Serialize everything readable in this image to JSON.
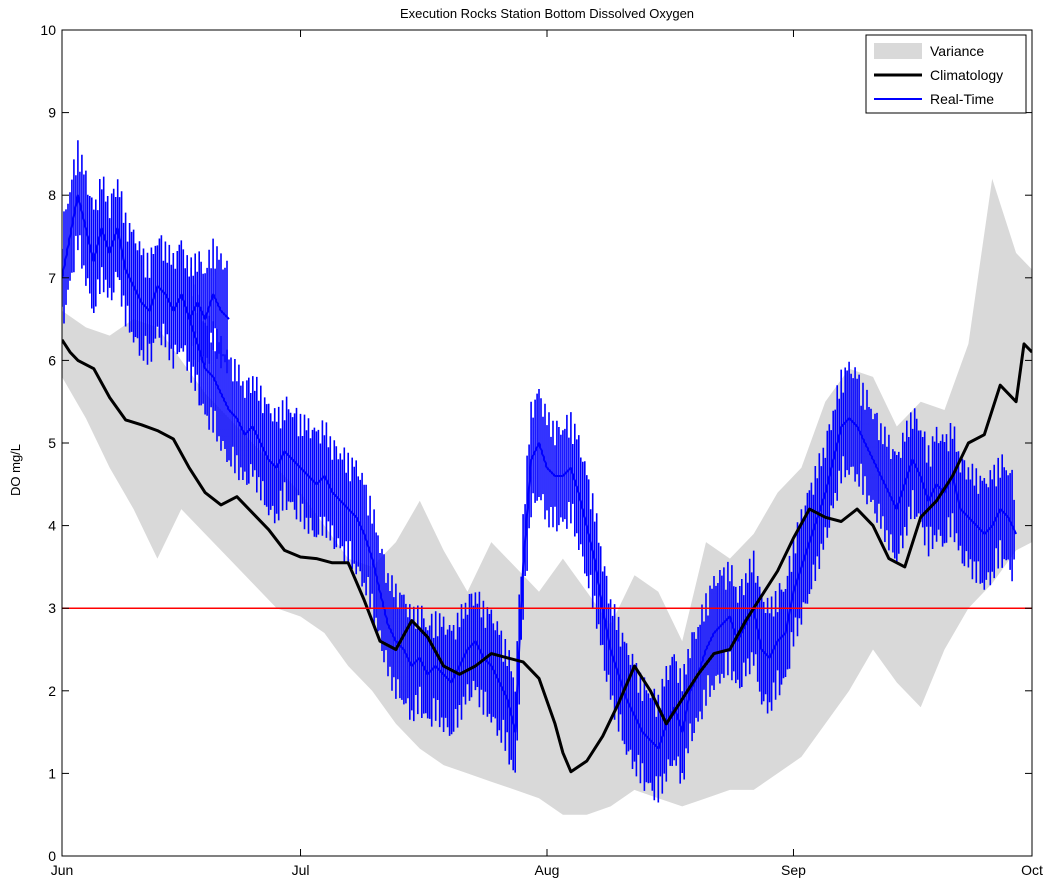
{
  "chart_data": {
    "type": "line",
    "title": "Execution Rocks Station Bottom Dissolved Oxygen",
    "xlabel": "",
    "ylabel": "DO mg/L",
    "xlim": [
      "Jun 1",
      "Oct 1"
    ],
    "ylim": [
      0,
      10
    ],
    "y_ticks": [
      0,
      1,
      2,
      3,
      4,
      5,
      6,
      7,
      8,
      9,
      10
    ],
    "x_ticks": [
      {
        "label": "Jun",
        "day": 0
      },
      {
        "label": "Jul",
        "day": 30
      },
      {
        "label": "Aug",
        "day": 61
      },
      {
        "label": "Sep",
        "day": 92
      },
      {
        "label": "Oct",
        "day": 122
      }
    ],
    "grid": false,
    "legend": {
      "placement": "top-right",
      "entries": [
        {
          "label": "Variance",
          "swatch": "fill",
          "color": "#d9d9d9"
        },
        {
          "label": "Climatology",
          "swatch": "line",
          "color": "#000000"
        },
        {
          "label": "Real-Time",
          "swatch": "line",
          "color": "#0000ff"
        }
      ]
    },
    "threshold": {
      "value": 3,
      "color": "#ff0000"
    },
    "colors": {
      "variance": "#d9d9d9",
      "climatology": "#000000",
      "realtime": "#0000ff",
      "threshold": "#ff0000"
    },
    "variance_band": {
      "x": [
        0,
        3,
        6,
        9,
        12,
        15,
        18,
        21,
        24,
        27,
        30,
        33,
        36,
        39,
        42,
        45,
        48,
        51,
        54,
        57,
        60,
        63,
        66,
        69,
        72,
        75,
        78,
        81,
        84,
        87,
        90,
        93,
        96,
        99,
        102,
        105,
        108,
        111,
        114,
        117,
        120,
        122
      ],
      "lower": [
        5.8,
        5.3,
        4.7,
        4.2,
        3.6,
        4.2,
        3.9,
        3.6,
        3.3,
        3.0,
        2.9,
        2.7,
        2.3,
        2.0,
        1.6,
        1.3,
        1.1,
        1.0,
        0.9,
        0.8,
        0.7,
        0.5,
        0.5,
        0.6,
        0.8,
        0.7,
        0.6,
        0.7,
        0.8,
        0.8,
        1.0,
        1.2,
        1.6,
        2.0,
        2.5,
        2.1,
        1.8,
        2.5,
        3.0,
        3.3,
        3.7,
        3.8
      ],
      "upper": [
        6.6,
        6.4,
        6.3,
        6.5,
        6.4,
        6.0,
        5.6,
        5.3,
        5.0,
        4.7,
        4.4,
        4.0,
        3.6,
        3.5,
        3.8,
        4.3,
        3.7,
        3.2,
        3.8,
        3.5,
        3.2,
        3.6,
        3.2,
        2.8,
        3.4,
        3.2,
        2.6,
        3.8,
        3.6,
        3.9,
        4.4,
        4.7,
        5.5,
        5.9,
        5.8,
        5.2,
        5.5,
        5.4,
        6.2,
        8.2,
        7.3,
        7.1
      ]
    },
    "series": [
      {
        "name": "Climatology",
        "x": [
          0,
          1,
          2,
          4,
          6,
          8,
          10,
          12,
          14,
          16,
          18,
          20,
          22,
          24,
          26,
          28,
          30,
          32,
          34,
          36,
          38,
          40,
          42,
          44,
          46,
          48,
          50,
          52,
          54,
          56,
          58,
          60,
          62,
          63,
          64,
          66,
          68,
          70,
          72,
          74,
          76,
          78,
          80,
          82,
          84,
          86,
          88,
          90,
          92,
          94,
          96,
          98,
          100,
          102,
          104,
          106,
          108,
          110,
          112,
          114,
          116,
          118,
          120,
          121,
          122
        ],
        "y": [
          6.25,
          6.1,
          6.0,
          5.9,
          5.55,
          5.28,
          5.22,
          5.15,
          5.05,
          4.7,
          4.4,
          4.25,
          4.35,
          4.15,
          3.95,
          3.7,
          3.62,
          3.6,
          3.55,
          3.55,
          3.1,
          2.6,
          2.5,
          2.85,
          2.65,
          2.3,
          2.2,
          2.3,
          2.45,
          2.4,
          2.35,
          2.15,
          1.6,
          1.25,
          1.02,
          1.15,
          1.45,
          1.85,
          2.3,
          2.0,
          1.6,
          1.9,
          2.2,
          2.45,
          2.5,
          2.85,
          3.15,
          3.45,
          3.85,
          4.2,
          4.1,
          4.05,
          4.2,
          4.0,
          3.6,
          3.5,
          4.1,
          4.3,
          4.6,
          5.0,
          5.1,
          5.7,
          5.5,
          6.2,
          6.1
        ]
      },
      {
        "name": "Real-Time",
        "segments": [
          {
            "x": [
              0,
              1,
              2,
              3,
              4,
              5,
              6,
              7,
              8,
              9,
              10,
              11,
              12,
              13,
              14,
              15,
              16,
              17,
              18,
              19,
              20,
              21
            ],
            "y": [
              7.0,
              7.5,
              8.0,
              7.6,
              7.2,
              7.6,
              7.3,
              7.6,
              7.1,
              6.9,
              6.7,
              6.6,
              6.9,
              6.8,
              6.6,
              6.8,
              6.5,
              6.7,
              6.5,
              6.8,
              6.6,
              6.5
            ]
          },
          {
            "x": [
              16,
              17,
              18,
              19,
              20,
              21,
              22,
              23,
              24,
              25,
              26,
              27,
              28,
              29,
              30,
              31,
              32,
              33,
              34,
              35,
              36,
              37,
              38,
              39,
              40,
              41,
              42,
              43,
              44,
              45,
              46,
              47,
              48,
              49,
              50,
              51,
              52,
              53,
              54,
              55,
              56,
              57,
              58,
              59,
              60,
              61,
              62,
              63,
              64,
              65,
              66,
              67,
              68,
              69,
              70,
              71,
              72,
              73,
              74,
              75,
              76,
              77,
              78,
              79,
              80,
              81,
              82,
              83,
              84,
              85,
              86,
              87,
              88,
              89,
              90,
              91,
              92,
              93,
              94,
              95,
              96,
              97,
              98,
              99,
              100,
              101,
              102,
              103,
              104,
              105,
              106,
              107,
              108,
              109,
              110,
              111,
              112,
              113,
              114,
              115,
              116,
              117,
              118,
              119,
              120
            ],
            "y": [
              6.5,
              6.2,
              5.9,
              5.8,
              5.6,
              5.4,
              5.3,
              5.1,
              5.2,
              5.0,
              4.8,
              4.7,
              4.9,
              4.8,
              4.7,
              4.6,
              4.5,
              4.6,
              4.4,
              4.3,
              4.2,
              4.1,
              3.9,
              3.6,
              3.2,
              2.8,
              2.6,
              2.5,
              2.3,
              2.4,
              2.2,
              2.3,
              2.2,
              2.1,
              2.3,
              2.5,
              2.6,
              2.4,
              2.3,
              2.1,
              1.9,
              1.5,
              3.5,
              4.8,
              5.0,
              4.7,
              4.6,
              4.6,
              4.7,
              4.4,
              4.0,
              3.6,
              3.0,
              2.5,
              2.2,
              1.9,
              1.7,
              1.5,
              1.4,
              1.3,
              1.6,
              1.8,
              1.5,
              2.0,
              2.2,
              2.5,
              2.7,
              2.8,
              2.9,
              2.6,
              2.8,
              3.0,
              2.5,
              2.4,
              2.6,
              2.7,
              3.2,
              3.5,
              3.8,
              4.1,
              4.4,
              4.8,
              5.2,
              5.3,
              5.2,
              5.0,
              4.8,
              4.6,
              4.4,
              4.2,
              4.5,
              4.8,
              4.6,
              4.3,
              4.5,
              4.4,
              4.6,
              4.2,
              4.1,
              4.0,
              3.9,
              4.0,
              4.2,
              4.1,
              3.9
            ]
          }
        ]
      }
    ]
  }
}
